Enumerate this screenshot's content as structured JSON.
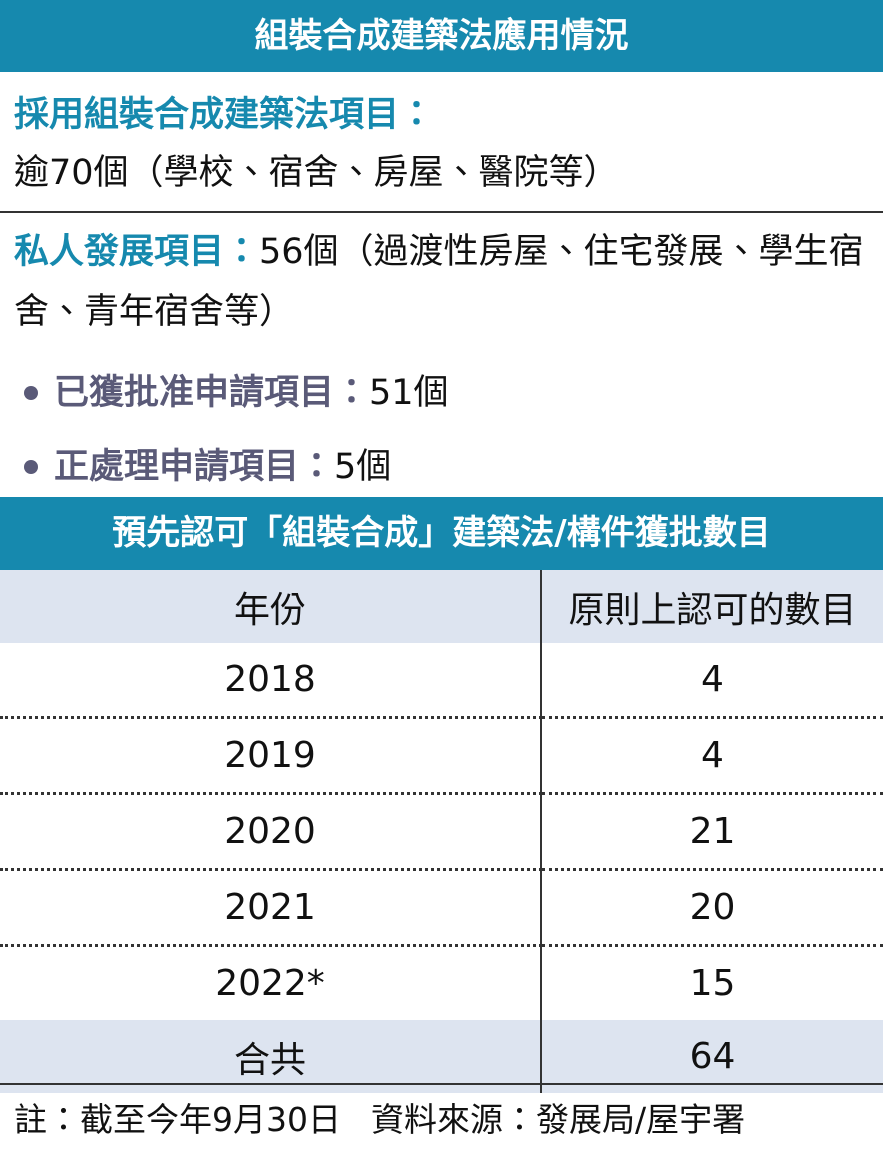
{
  "header": {
    "title": "組裝合成建築法應用情況"
  },
  "section1": {
    "label": "採用組裝合成建築法項目：",
    "text": "逾70個（學校、宿舍、房屋、醫院等）"
  },
  "section2": {
    "label": "私人發展項目：",
    "text": "56個（過渡性房屋、住宅發展、學生宿舍、青年宿舍等）",
    "bullets": [
      {
        "label": "已獲批准申請項目：",
        "text": "51個"
      },
      {
        "label": "正處理申請項目：",
        "text": "5個"
      }
    ]
  },
  "table": {
    "title": "預先認可「組裝合成」建築法/構件獲批數目",
    "columns": [
      "年份",
      "原則上認可的數目"
    ],
    "rows": [
      [
        "2018",
        "4"
      ],
      [
        "2019",
        "4"
      ],
      [
        "2020",
        "21"
      ],
      [
        "2021",
        "20"
      ],
      [
        "2022*",
        "15"
      ]
    ],
    "total": [
      "合共",
      "64"
    ]
  },
  "footer": {
    "note": "註：截至今年9月30日",
    "source": "資料來源：發展局/屋宇署"
  }
}
